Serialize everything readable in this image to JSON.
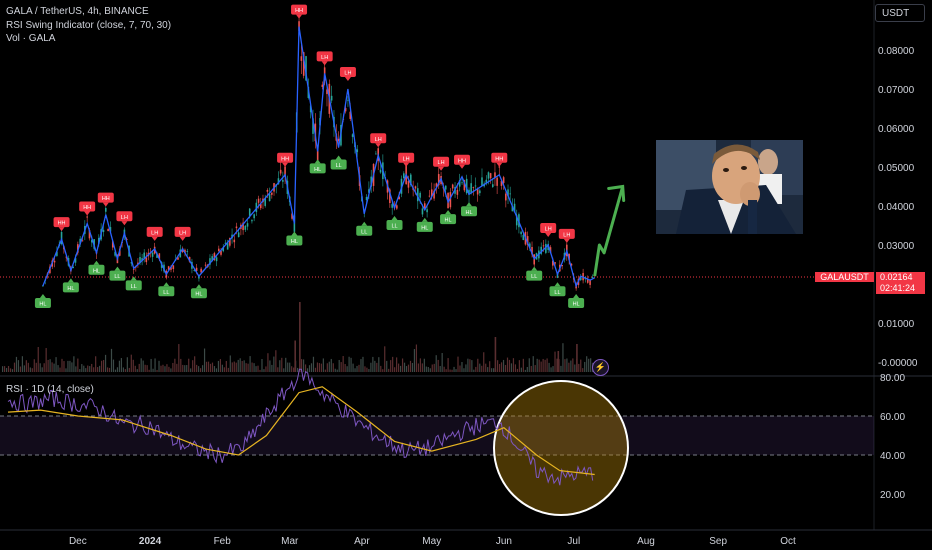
{
  "header": {
    "title": "GALA / TetherUS, 4h, BINANCE",
    "indicator": "RSI Swing Indicator (close, 7, 70, 30)",
    "volume": "Vol · GALA",
    "currency_button": "USDT"
  },
  "price_axis": {
    "ticks": [
      "0.08000",
      "0.07000",
      "0.06000",
      "0.05000",
      "0.04000",
      "0.03000",
      "0.01000",
      "-0.00000"
    ],
    "symbol_label": "GALAUSDT",
    "last_price": "0.02164",
    "countdown": "02:41:24"
  },
  "rsi_panel": {
    "label": "RSI · 1D (14, close)",
    "ticks": [
      "80.00",
      "60.00",
      "40.00",
      "20.00"
    ]
  },
  "time_axis": {
    "ticks": [
      "Dec",
      "2024",
      "Feb",
      "Mar",
      "Apr",
      "May",
      "Jun",
      "Jul",
      "Aug",
      "Sep",
      "Oct"
    ]
  },
  "colors": {
    "background": "#000000",
    "swing_line": "#2962ff",
    "candle_up": "#26a69a",
    "candle_down": "#ef5350",
    "rsi_line": "#7e57c2",
    "rsi_ma": "#e6b422",
    "arrow": "#4caf50",
    "highlight_circle": "#ffffff"
  },
  "chart_data": {
    "type": "line",
    "interval": "4h",
    "price_ylim": [
      0,
      0.09
    ],
    "swing_points": [
      {
        "date": "2023-11-16",
        "price": 0.0195,
        "label": "HL"
      },
      {
        "date": "2023-11-24",
        "price": 0.0315,
        "label": "HH"
      },
      {
        "date": "2023-11-28",
        "price": 0.0235,
        "label": "HL"
      },
      {
        "date": "2023-12-05",
        "price": 0.0355,
        "label": "HH"
      },
      {
        "date": "2023-12-09",
        "price": 0.028,
        "label": "HL"
      },
      {
        "date": "2023-12-13",
        "price": 0.0378,
        "label": "HH"
      },
      {
        "date": "2023-12-18",
        "price": 0.0265,
        "label": "LL"
      },
      {
        "date": "2023-12-21",
        "price": 0.033,
        "label": "LH"
      },
      {
        "date": "2023-12-25",
        "price": 0.024,
        "label": "LL"
      },
      {
        "date": "2024-01-03",
        "price": 0.029,
        "label": "LH"
      },
      {
        "date": "2024-01-08",
        "price": 0.0225,
        "label": "LL"
      },
      {
        "date": "2024-01-15",
        "price": 0.029,
        "label": "LH"
      },
      {
        "date": "2024-01-22",
        "price": 0.022,
        "label": "HL"
      },
      {
        "date": "2024-02-28",
        "price": 0.048,
        "label": "HH"
      },
      {
        "date": "2024-03-03",
        "price": 0.0355,
        "label": "HL"
      },
      {
        "date": "2024-03-05",
        "price": 0.086,
        "label": "HH"
      },
      {
        "date": "2024-03-13",
        "price": 0.054,
        "label": "HL"
      },
      {
        "date": "2024-03-16",
        "price": 0.074,
        "label": "LH"
      },
      {
        "date": "2024-03-22",
        "price": 0.055,
        "label": "LL"
      },
      {
        "date": "2024-03-26",
        "price": 0.07,
        "label": "LH"
      },
      {
        "date": "2024-04-02",
        "price": 0.038,
        "label": "LL"
      },
      {
        "date": "2024-04-08",
        "price": 0.053,
        "label": "LH"
      },
      {
        "date": "2024-04-15",
        "price": 0.0395,
        "label": "LL"
      },
      {
        "date": "2024-04-20",
        "price": 0.048,
        "label": "LH"
      },
      {
        "date": "2024-04-28",
        "price": 0.039,
        "label": "HL"
      },
      {
        "date": "2024-05-05",
        "price": 0.047,
        "label": "LH"
      },
      {
        "date": "2024-05-08",
        "price": 0.041,
        "label": "HL"
      },
      {
        "date": "2024-05-14",
        "price": 0.0475,
        "label": "HH"
      },
      {
        "date": "2024-05-17",
        "price": 0.043,
        "label": "HL"
      },
      {
        "date": "2024-05-30",
        "price": 0.048,
        "label": "HH"
      },
      {
        "date": "2024-06-14",
        "price": 0.0265,
        "label": "LL"
      },
      {
        "date": "2024-06-20",
        "price": 0.03,
        "label": "LH"
      },
      {
        "date": "2024-06-24",
        "price": 0.0225,
        "label": "LL"
      },
      {
        "date": "2024-06-28",
        "price": 0.0285,
        "label": "LH"
      },
      {
        "date": "2024-07-02",
        "price": 0.0195,
        "label": "HL"
      },
      {
        "date": "2024-07-04",
        "price": 0.022,
        "label": ""
      },
      {
        "date": "2024-07-08",
        "price": 0.021,
        "label": ""
      },
      {
        "date": "2024-07-10",
        "price": 0.0216,
        "label": ""
      }
    ],
    "projection": [
      {
        "date": "2024-07-10",
        "price": 0.022
      },
      {
        "date": "2024-07-12",
        "price": 0.03
      },
      {
        "date": "2024-07-14",
        "price": 0.028
      },
      {
        "date": "2024-07-22",
        "price": 0.045
      }
    ],
    "rsi_ylim": [
      15,
      85
    ],
    "rsi_bands": [
      40,
      60
    ],
    "rsi": [
      {
        "date": "2023-11-01",
        "value": 68
      },
      {
        "date": "2023-11-10",
        "value": 66
      },
      {
        "date": "2023-11-20",
        "value": 69
      },
      {
        "date": "2023-12-01",
        "value": 66
      },
      {
        "date": "2023-12-10",
        "value": 64
      },
      {
        "date": "2023-12-20",
        "value": 56
      },
      {
        "date": "2024-01-01",
        "value": 55
      },
      {
        "date": "2024-01-10",
        "value": 48
      },
      {
        "date": "2024-01-20",
        "value": 43
      },
      {
        "date": "2024-02-01",
        "value": 40
      },
      {
        "date": "2024-02-10",
        "value": 44
      },
      {
        "date": "2024-02-20",
        "value": 60
      },
      {
        "date": "2024-03-01",
        "value": 75
      },
      {
        "date": "2024-03-06",
        "value": 83
      },
      {
        "date": "2024-03-15",
        "value": 72
      },
      {
        "date": "2024-03-25",
        "value": 62
      },
      {
        "date": "2024-04-01",
        "value": 55
      },
      {
        "date": "2024-04-10",
        "value": 48
      },
      {
        "date": "2024-04-20",
        "value": 42
      },
      {
        "date": "2024-05-01",
        "value": 44
      },
      {
        "date": "2024-05-10",
        "value": 50
      },
      {
        "date": "2024-05-20",
        "value": 55
      },
      {
        "date": "2024-05-30",
        "value": 57
      },
      {
        "date": "2024-06-05",
        "value": 48
      },
      {
        "date": "2024-06-15",
        "value": 32
      },
      {
        "date": "2024-06-25",
        "value": 28
      },
      {
        "date": "2024-07-01",
        "value": 30
      },
      {
        "date": "2024-07-10",
        "value": 31
      }
    ],
    "rsi_ma": [
      {
        "date": "2023-11-01",
        "value": 62
      },
      {
        "date": "2023-11-15",
        "value": 63
      },
      {
        "date": "2023-12-01",
        "value": 60
      },
      {
        "date": "2023-12-20",
        "value": 58
      },
      {
        "date": "2024-01-10",
        "value": 50
      },
      {
        "date": "2024-01-25",
        "value": 43
      },
      {
        "date": "2024-02-08",
        "value": 40
      },
      {
        "date": "2024-02-20",
        "value": 50
      },
      {
        "date": "2024-03-05",
        "value": 72
      },
      {
        "date": "2024-03-15",
        "value": 75
      },
      {
        "date": "2024-03-30",
        "value": 62
      },
      {
        "date": "2024-04-15",
        "value": 47
      },
      {
        "date": "2024-05-01",
        "value": 42
      },
      {
        "date": "2024-05-20",
        "value": 48
      },
      {
        "date": "2024-06-01",
        "value": 54
      },
      {
        "date": "2024-06-15",
        "value": 40
      },
      {
        "date": "2024-06-25",
        "value": 32
      },
      {
        "date": "2024-07-10",
        "value": 30
      }
    ],
    "volume_spikes": [
      {
        "date": "2024-03-05",
        "value": 1.0
      },
      {
        "date": "2024-03-03",
        "value": 0.45
      },
      {
        "date": "2024-05-28",
        "value": 0.5
      },
      {
        "date": "2024-07-02",
        "value": 0.4
      },
      {
        "date": "2024-06-24",
        "value": 0.3
      }
    ],
    "grid": false
  }
}
